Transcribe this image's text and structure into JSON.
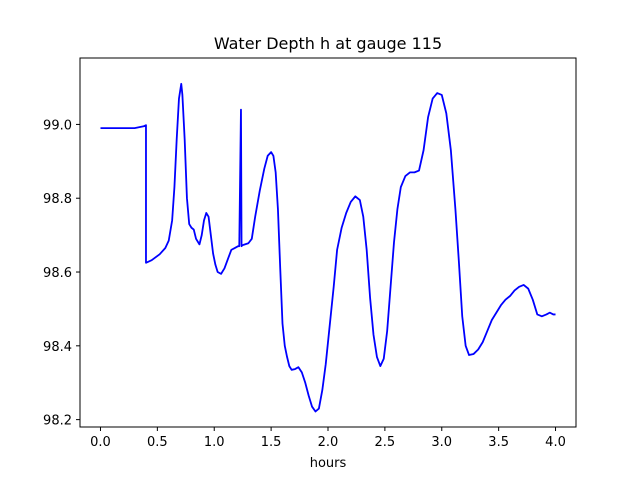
{
  "chart_data": {
    "type": "line",
    "title": "Water Depth h at gauge 115",
    "xlabel": "hours",
    "ylabel": "",
    "xlim": [
      -0.18,
      4.18
    ],
    "ylim": [
      98.18,
      99.18
    ],
    "xticks": [
      0.0,
      0.5,
      1.0,
      1.5,
      2.0,
      2.5,
      3.0,
      3.5,
      4.0
    ],
    "xtick_labels": [
      "0.0",
      "0.5",
      "1.0",
      "1.5",
      "2.0",
      "2.5",
      "3.0",
      "3.5",
      "4.0"
    ],
    "yticks": [
      98.2,
      98.4,
      98.6,
      98.8,
      99.0
    ],
    "ytick_labels": [
      "98.2",
      "98.4",
      "98.6",
      "98.8",
      "99.0"
    ],
    "grid": false,
    "line_color": "#0000ff",
    "series": [
      {
        "x": [
          0.0,
          0.1,
          0.2,
          0.3,
          0.38,
          0.4,
          0.4,
          0.45,
          0.52,
          0.57,
          0.6,
          0.63,
          0.65,
          0.67,
          0.69,
          0.71,
          0.72,
          0.74,
          0.76,
          0.78,
          0.8,
          0.82,
          0.84,
          0.87,
          0.89,
          0.91,
          0.93,
          0.95,
          0.97,
          0.99,
          1.01,
          1.03,
          1.06,
          1.09,
          1.12,
          1.15,
          1.18,
          1.21,
          1.22,
          1.235,
          1.24,
          1.245,
          1.26,
          1.3,
          1.33,
          1.36,
          1.4,
          1.44,
          1.47,
          1.5,
          1.52,
          1.54,
          1.56,
          1.58,
          1.6,
          1.62,
          1.64,
          1.66,
          1.68,
          1.71,
          1.74,
          1.77,
          1.8,
          1.83,
          1.86,
          1.89,
          1.92,
          1.95,
          1.98,
          2.0,
          2.02,
          2.05,
          2.08,
          2.12,
          2.16,
          2.2,
          2.24,
          2.28,
          2.31,
          2.34,
          2.37,
          2.4,
          2.43,
          2.46,
          2.49,
          2.52,
          2.55,
          2.58,
          2.61,
          2.64,
          2.68,
          2.72,
          2.76,
          2.8,
          2.84,
          2.88,
          2.92,
          2.96,
          3.0,
          3.04,
          3.08,
          3.12,
          3.15,
          3.18,
          3.21,
          3.24,
          3.28,
          3.32,
          3.36,
          3.4,
          3.44,
          3.48,
          3.52,
          3.56,
          3.6,
          3.64,
          3.68,
          3.72,
          3.76,
          3.8,
          3.84,
          3.88,
          3.92,
          3.95,
          3.98,
          4.0
        ],
        "y": [
          98.99,
          98.99,
          98.99,
          98.99,
          98.995,
          98.998,
          98.625,
          98.632,
          98.648,
          98.665,
          98.685,
          98.74,
          98.83,
          98.96,
          99.07,
          99.11,
          99.08,
          98.96,
          98.8,
          98.73,
          98.72,
          98.715,
          98.69,
          98.675,
          98.7,
          98.74,
          98.76,
          98.75,
          98.7,
          98.65,
          98.62,
          98.6,
          98.595,
          98.61,
          98.635,
          98.66,
          98.665,
          98.67,
          98.67,
          99.04,
          98.67,
          98.672,
          98.674,
          98.678,
          98.69,
          98.75,
          98.82,
          98.88,
          98.915,
          98.925,
          98.915,
          98.87,
          98.77,
          98.61,
          98.46,
          98.4,
          98.37,
          98.345,
          98.335,
          98.337,
          98.342,
          98.328,
          98.3,
          98.265,
          98.235,
          98.222,
          98.23,
          98.28,
          98.35,
          98.41,
          98.47,
          98.56,
          98.66,
          98.72,
          98.76,
          98.79,
          98.805,
          98.795,
          98.75,
          98.66,
          98.53,
          98.43,
          98.37,
          98.345,
          98.365,
          98.44,
          98.56,
          98.68,
          98.77,
          98.83,
          98.86,
          98.87,
          98.87,
          98.875,
          98.93,
          99.02,
          99.07,
          99.085,
          99.08,
          99.03,
          98.93,
          98.77,
          98.63,
          98.48,
          98.4,
          98.375,
          98.378,
          98.39,
          98.41,
          98.44,
          98.47,
          98.49,
          98.51,
          98.525,
          98.535,
          98.55,
          98.56,
          98.565,
          98.555,
          98.525,
          98.485,
          98.48,
          98.485,
          98.49,
          98.485,
          98.485
        ]
      }
    ]
  }
}
